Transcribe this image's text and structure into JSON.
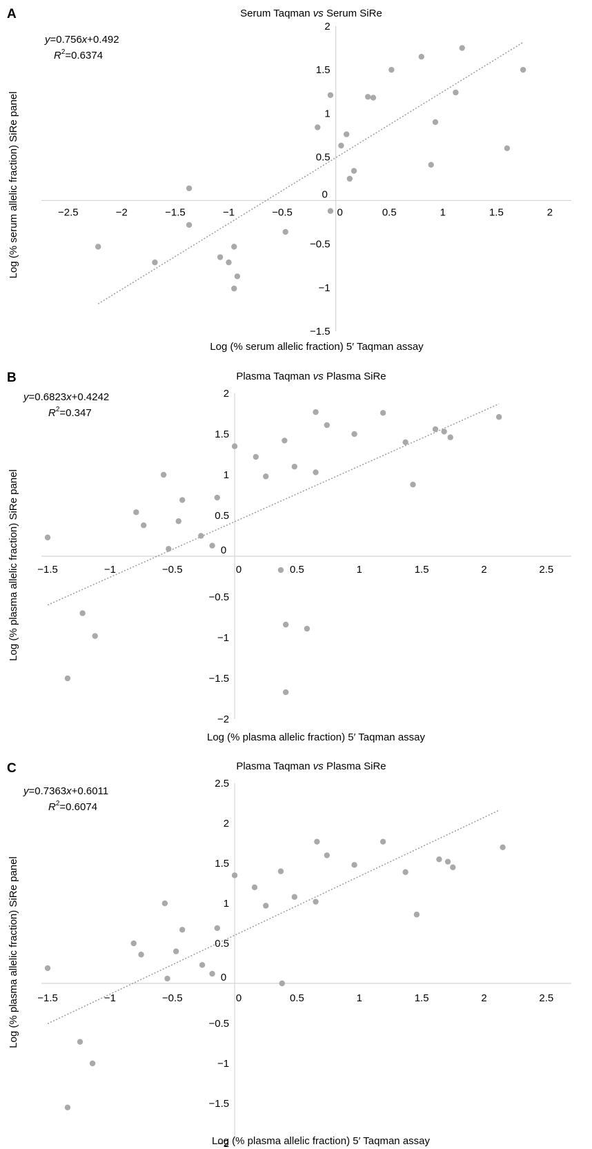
{
  "figure": {
    "background": "#ffffff",
    "marker_color": "#a9a9a9",
    "trend_color": "#9a9a9a",
    "axis_color": "#d4d4d4"
  },
  "chart_data": [
    {
      "panel": "A",
      "type": "scatter",
      "title_main": "Serum Taqman ",
      "title_vs": "vs",
      "title_rest": " Serum SiRe",
      "equation": {
        "y": "y",
        "eq": "=0.756",
        "x": "x",
        "rest": "+0.492"
      },
      "r2": {
        "label": "R",
        "sup": "2",
        "value": "=0.6374"
      },
      "xlabel": "Log (% serum allelic fraction) 5′ Taqman assay",
      "ylabel": "Log (% serum allelic fraction) SiRe panel",
      "xlim": [
        -2.75,
        2.2
      ],
      "ylim": [
        -1.5,
        2
      ],
      "xticks": [
        -2.5,
        -2,
        -1.5,
        -1,
        -0.5,
        0,
        0.5,
        1,
        1.5,
        2
      ],
      "yticks": [
        -1.5,
        -1,
        -0.5,
        0,
        0.5,
        1,
        1.5,
        2
      ],
      "trend": {
        "slope": 0.756,
        "intercept": 0.492,
        "x_range": [
          -2.22,
          1.75
        ]
      },
      "points": [
        [
          -2.22,
          -0.53
        ],
        [
          -1.69,
          -0.71
        ],
        [
          -1.37,
          0.14
        ],
        [
          -1.37,
          -0.28
        ],
        [
          -1.08,
          -0.65
        ],
        [
          -1.0,
          -0.71
        ],
        [
          -0.95,
          -0.53
        ],
        [
          -0.92,
          -0.87
        ],
        [
          -0.95,
          -1.01
        ],
        [
          -0.47,
          -0.36
        ],
        [
          -0.17,
          0.84
        ],
        [
          -0.05,
          -0.12
        ],
        [
          -0.05,
          1.21
        ],
        [
          0.05,
          0.63
        ],
        [
          0.1,
          0.76
        ],
        [
          0.13,
          0.25
        ],
        [
          0.17,
          0.34
        ],
        [
          0.3,
          1.19
        ],
        [
          0.35,
          1.18
        ],
        [
          0.52,
          1.5
        ],
        [
          0.8,
          1.65
        ],
        [
          0.89,
          0.41
        ],
        [
          0.93,
          0.9
        ],
        [
          1.12,
          1.24
        ],
        [
          1.18,
          1.75
        ],
        [
          1.6,
          0.6
        ],
        [
          1.75,
          1.5
        ]
      ]
    },
    {
      "panel": "B",
      "type": "scatter",
      "title_main": "Plasma Taqman ",
      "title_vs": "vs",
      "title_rest": " Plasma SiRe",
      "equation": {
        "y": "y",
        "eq": "=0.6823",
        "x": "x",
        "rest": "+0.4242"
      },
      "r2": {
        "label": "R",
        "sup": "2",
        "value": "=0.347"
      },
      "xlabel": "Log (% plasma allelic fraction) 5′ Taqman assay",
      "ylabel": "Log (% plasma allelic fraction) SiRe panel",
      "xlim": [
        -1.55,
        2.7
      ],
      "ylim": [
        -2,
        2
      ],
      "xticks": [
        -1.5,
        -1,
        -0.5,
        0,
        0.5,
        1,
        1.5,
        2,
        2.5
      ],
      "yticks": [
        -2,
        -1.5,
        -1,
        -0.5,
        0,
        0.5,
        1,
        1.5,
        2
      ],
      "trend": {
        "slope": 0.6823,
        "intercept": 0.4242,
        "x_range": [
          -1.5,
          2.12
        ]
      },
      "points": [
        [
          -1.5,
          0.23
        ],
        [
          -1.34,
          -1.5
        ],
        [
          -1.22,
          -0.7
        ],
        [
          -1.12,
          -0.98
        ],
        [
          -0.79,
          0.54
        ],
        [
          -0.73,
          0.38
        ],
        [
          -0.57,
          1.0
        ],
        [
          -0.53,
          0.09
        ],
        [
          -0.45,
          0.43
        ],
        [
          -0.42,
          0.69
        ],
        [
          -0.27,
          0.25
        ],
        [
          -0.18,
          0.13
        ],
        [
          -0.14,
          0.72
        ],
        [
          0.0,
          1.35
        ],
        [
          0.17,
          1.22
        ],
        [
          0.25,
          0.98
        ],
        [
          0.37,
          -0.17
        ],
        [
          0.4,
          1.42
        ],
        [
          0.41,
          -0.84
        ],
        [
          0.41,
          -1.67
        ],
        [
          0.48,
          1.1
        ],
        [
          0.58,
          -0.89
        ],
        [
          0.65,
          1.77
        ],
        [
          0.65,
          1.03
        ],
        [
          0.74,
          1.61
        ],
        [
          0.96,
          1.5
        ],
        [
          1.19,
          1.76
        ],
        [
          1.37,
          1.4
        ],
        [
          1.43,
          0.88
        ],
        [
          1.61,
          1.56
        ],
        [
          1.68,
          1.53
        ],
        [
          1.73,
          1.46
        ],
        [
          2.12,
          1.71
        ]
      ]
    },
    {
      "panel": "C",
      "type": "scatter",
      "title_main": "Plasma Taqman ",
      "title_vs": "vs",
      "title_rest": " Plasma SiRe",
      "equation": {
        "y": "y",
        "eq": "=0.7363",
        "x": "x",
        "rest": "+0.6011"
      },
      "r2": {
        "label": "R",
        "sup": "2",
        "value": "=0.6074"
      },
      "xlabel": "Log (% plasma allelic fraction) 5′ Taqman assay",
      "ylabel": "Log (% plasma allelic fraction) SiRe panel",
      "xlim": [
        -1.55,
        2.7
      ],
      "ylim": [
        -2,
        2.5
      ],
      "xticks": [
        -1.5,
        -1,
        -0.5,
        0,
        0.5,
        1,
        1.5,
        2,
        2.5
      ],
      "yticks": [
        -2,
        -1.5,
        -1,
        -0.5,
        0,
        0.5,
        1,
        1.5,
        2,
        2.5
      ],
      "trend": {
        "slope": 0.7363,
        "intercept": 0.6011,
        "x_range": [
          -1.5,
          2.12
        ]
      },
      "points": [
        [
          -1.5,
          0.19
        ],
        [
          -1.34,
          -1.55
        ],
        [
          -1.24,
          -0.73
        ],
        [
          -1.14,
          -1.0
        ],
        [
          -0.81,
          0.5
        ],
        [
          -0.75,
          0.36
        ],
        [
          -0.56,
          1.0
        ],
        [
          -0.54,
          0.06
        ],
        [
          -0.47,
          0.4
        ],
        [
          -0.42,
          0.67
        ],
        [
          -0.26,
          0.23
        ],
        [
          -0.18,
          0.12
        ],
        [
          -0.14,
          0.69
        ],
        [
          0.0,
          1.35
        ],
        [
          0.16,
          1.2
        ],
        [
          0.25,
          0.97
        ],
        [
          0.37,
          1.4
        ],
        [
          0.38,
          0.0
        ],
        [
          0.48,
          1.08
        ],
        [
          0.65,
          1.02
        ],
        [
          0.66,
          1.77
        ],
        [
          0.74,
          1.6
        ],
        [
          0.96,
          1.48
        ],
        [
          1.19,
          1.77
        ],
        [
          1.37,
          1.39
        ],
        [
          1.46,
          0.86
        ],
        [
          1.64,
          1.55
        ],
        [
          1.71,
          1.52
        ],
        [
          1.75,
          1.45
        ],
        [
          2.15,
          1.7
        ]
      ]
    }
  ]
}
